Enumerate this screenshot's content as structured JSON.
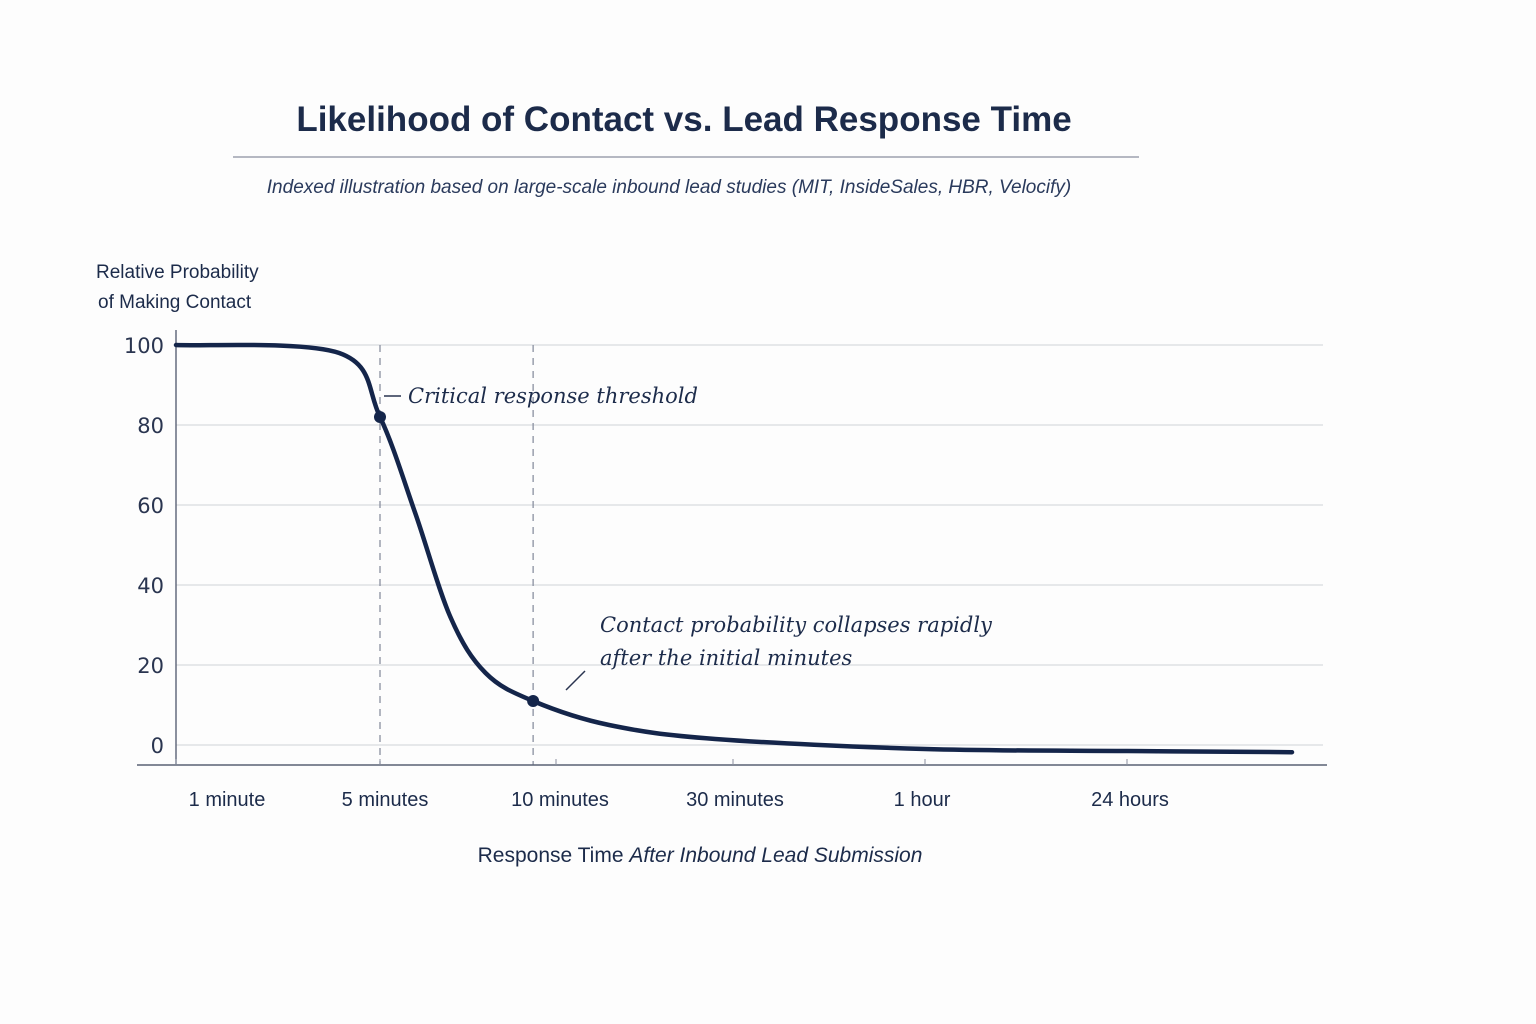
{
  "chart_data": {
    "type": "line",
    "title": "Likelihood of Contact vs. Lead Response Time",
    "subtitle": "Indexed illustration based on large-scale inbound lead studies (MIT, InsideSales, HBR, Velocify)",
    "ylabel_lines": [
      "Relative Probability",
      "of Making Contact"
    ],
    "xlabel_normal": "Response Time",
    "xlabel_italic": "After Inbound Lead Submission",
    "categories": [
      "1 minute",
      "5 minutes",
      "10 minutes",
      "30 minutes",
      "1 hour",
      "24 hours"
    ],
    "ylim": [
      0,
      100
    ],
    "yticks": [
      0,
      20,
      40,
      60,
      80,
      100
    ],
    "grid": true,
    "series": [
      {
        "name": "Relative Probability of Making Contact",
        "points": [
          {
            "x": 0.0,
            "y": 100
          },
          {
            "x": 0.8,
            "y": 98
          },
          {
            "x": 1.0,
            "y": 82
          },
          {
            "x": 1.2,
            "y": 58
          },
          {
            "x": 1.4,
            "y": 32
          },
          {
            "x": 1.6,
            "y": 18
          },
          {
            "x": 1.87,
            "y": 11
          },
          {
            "x": 2.3,
            "y": 5
          },
          {
            "x": 2.9,
            "y": 1.5
          },
          {
            "x": 4.0,
            "y": -1
          },
          {
            "x": 5.0,
            "y": -1.5
          },
          {
            "x": 6.0,
            "y": -1.8
          }
        ]
      }
    ],
    "highlight_points": [
      {
        "x": 1.0,
        "y": 82
      },
      {
        "x": 1.87,
        "y": 11
      }
    ],
    "annotations": [
      {
        "id": "threshold",
        "text_lines": [
          "Critical response threshold"
        ],
        "x": 1.0,
        "y": 82
      },
      {
        "id": "collapse",
        "text_lines": [
          "Contact probability collapses rapidly",
          "after the initial minutes"
        ],
        "x": 1.87,
        "y": 11
      }
    ]
  }
}
